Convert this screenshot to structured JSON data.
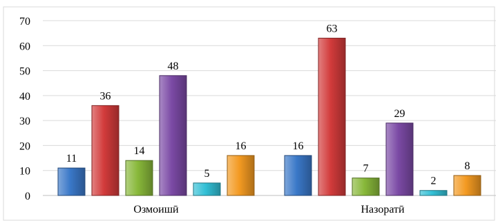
{
  "chart_data": {
    "type": "bar",
    "categories": [
      "Озмоишӣ",
      "Назоратӣ"
    ],
    "series": [
      {
        "values": [
          11,
          16
        ],
        "color": "#3a78c8"
      },
      {
        "values": [
          36,
          63
        ],
        "color": "#d23b3b"
      },
      {
        "values": [
          14,
          7
        ],
        "color": "#88b83a"
      },
      {
        "values": [
          48,
          29
        ],
        "color": "#7b4aa5"
      },
      {
        "values": [
          5,
          2
        ],
        "color": "#33c0d6"
      },
      {
        "values": [
          16,
          8
        ],
        "color": "#f39a22"
      }
    ],
    "ylim": [
      0,
      70
    ],
    "yticks": [
      0,
      10,
      20,
      30,
      40,
      50,
      60,
      70
    ],
    "grid": true,
    "data_labels": true
  }
}
